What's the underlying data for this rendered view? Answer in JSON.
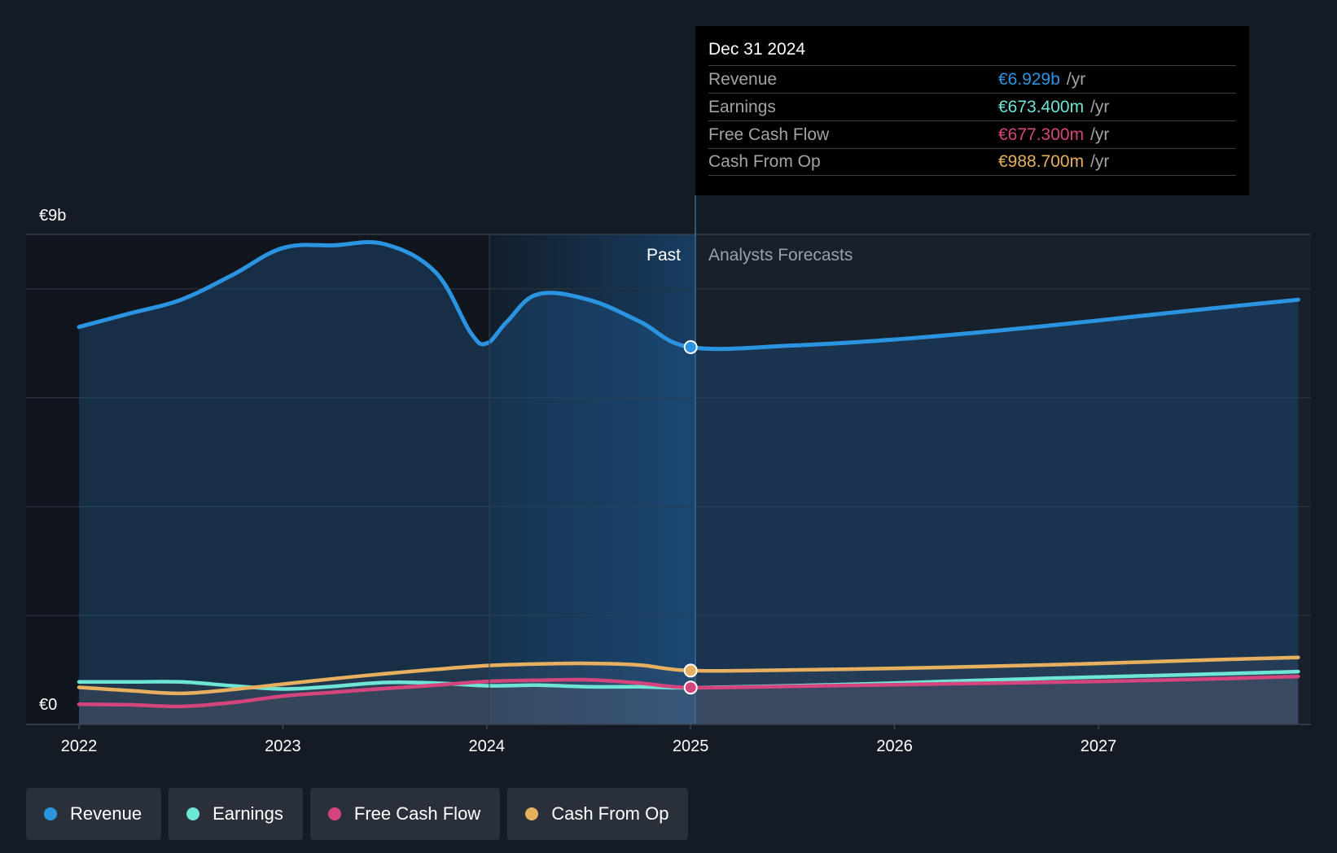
{
  "chart_data": {
    "type": "area",
    "y_axis": {
      "min_label": "€0",
      "max_label": "€9b",
      "ylim": [
        0,
        9000
      ]
    },
    "x_axis": {
      "tick_labels": [
        "2022",
        "2023",
        "2024",
        "2025",
        "2026",
        "2027"
      ],
      "ticks": [
        2022,
        2023,
        2024,
        2025,
        2026,
        2027
      ],
      "xlim": [
        2021.75,
        2027.98
      ]
    },
    "grid": true,
    "past_label": "Past",
    "forecast_label": "Analysts Forecasts",
    "divider_x": 2025.0,
    "series": [
      {
        "name": "Revenue",
        "color": "#2b94e0",
        "x": [
          2022.0,
          2022.25,
          2022.5,
          2022.75,
          2023.0,
          2023.25,
          2023.5,
          2023.75,
          2023.92,
          2024.0,
          2024.1,
          2024.25,
          2024.5,
          2024.75,
          2025.0,
          2025.5,
          2026.0,
          2026.5,
          2027.0,
          2027.5,
          2027.98
        ],
        "y": [
          7300,
          7550,
          7800,
          8250,
          8750,
          8800,
          8820,
          8300,
          7200,
          7000,
          7400,
          7900,
          7800,
          7400,
          6929,
          6960,
          7070,
          7230,
          7420,
          7620,
          7800
        ]
      },
      {
        "name": "Earnings",
        "color": "#6ee5d5",
        "x": [
          2022.0,
          2022.25,
          2022.5,
          2022.75,
          2023.0,
          2023.25,
          2023.5,
          2023.75,
          2024.0,
          2024.25,
          2024.5,
          2024.75,
          2025.0,
          2025.5,
          2026.0,
          2026.5,
          2027.0,
          2027.5,
          2027.98
        ],
        "y": [
          780,
          780,
          780,
          710,
          650,
          700,
          770,
          760,
          710,
          720,
          690,
          690,
          673,
          710,
          760,
          820,
          870,
          920,
          970
        ]
      },
      {
        "name": "Free Cash Flow",
        "color": "#d5457d",
        "x": [
          2022.0,
          2022.25,
          2022.5,
          2022.75,
          2023.0,
          2023.25,
          2023.5,
          2023.75,
          2024.0,
          2024.25,
          2024.5,
          2024.75,
          2025.0,
          2025.5,
          2026.0,
          2026.5,
          2027.0,
          2027.5,
          2027.98
        ],
        "y": [
          370,
          360,
          330,
          400,
          520,
          590,
          660,
          720,
          790,
          810,
          820,
          760,
          677,
          700,
          730,
          760,
          790,
          830,
          880
        ]
      },
      {
        "name": "Cash From Op",
        "color": "#e7b060",
        "x": [
          2022.0,
          2022.25,
          2022.5,
          2022.75,
          2023.0,
          2023.25,
          2023.5,
          2023.75,
          2024.0,
          2024.25,
          2024.5,
          2024.75,
          2025.0,
          2025.5,
          2026.0,
          2026.5,
          2027.0,
          2027.5,
          2027.98
        ],
        "y": [
          680,
          620,
          570,
          640,
          740,
          840,
          930,
          1010,
          1080,
          1110,
          1120,
          1090,
          988.7,
          1000,
          1030,
          1070,
          1120,
          1180,
          1230
        ]
      }
    ]
  },
  "tooltip": {
    "date": "Dec 31 2024",
    "rows": [
      {
        "label": "Revenue",
        "value": "€6.929b",
        "unit": "/yr",
        "color": "#2b94e0"
      },
      {
        "label": "Earnings",
        "value": "€673.400m",
        "unit": "/yr",
        "color": "#6ee5d5"
      },
      {
        "label": "Free Cash Flow",
        "value": "€677.300m",
        "unit": "/yr",
        "color": "#d5457d"
      },
      {
        "label": "Cash From Op",
        "value": "€988.700m",
        "unit": "/yr",
        "color": "#e7b060"
      }
    ]
  },
  "legend": [
    {
      "label": "Revenue",
      "color": "#2b94e0"
    },
    {
      "label": "Earnings",
      "color": "#6ee5d5"
    },
    {
      "label": "Free Cash Flow",
      "color": "#d5457d"
    },
    {
      "label": "Cash From Op",
      "color": "#e7b060"
    }
  ]
}
